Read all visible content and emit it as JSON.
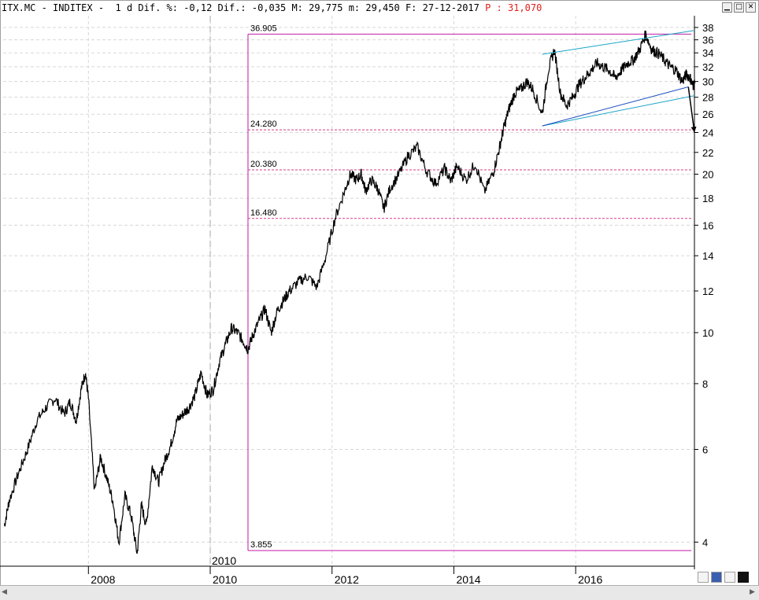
{
  "header": {
    "text": "ITX.MC - INDITEX -  1 d Dif. %: -0,12 Dif.: -0,035 M: 29,775 m: 29,450 F: 27-12-2017 ",
    "last_label": "P : 31,070"
  },
  "colors": {
    "price": "#000000",
    "fib": "#c21ba7",
    "fib_dash": "#d43a8a",
    "channel": "#1aa6c8",
    "channel_inner": "#1a4fbf",
    "grid": "#d8d8d8"
  },
  "chart_data": {
    "type": "line",
    "scale": "log",
    "ylim": [
      3.6,
      40
    ],
    "xlim": [
      2006.6,
      2017.95
    ],
    "y_ticks": [
      4,
      6,
      8,
      10,
      12,
      14,
      16,
      18,
      20,
      22,
      24,
      26,
      28,
      30,
      32,
      34,
      36,
      38
    ],
    "x_ticks": [
      {
        "x": 2008,
        "label": "2008"
      },
      {
        "x": 2010,
        "label": "2010"
      },
      {
        "x": 2012,
        "label": "2012"
      },
      {
        "x": 2014,
        "label": "2014"
      },
      {
        "x": 2016,
        "label": "2016"
      }
    ],
    "vertical_marker": {
      "x": 2010,
      "label": "2010"
    },
    "series": [
      {
        "x": [
          2006.62,
          2006.7,
          2006.85,
          2007.0,
          2007.15,
          2007.3,
          2007.45,
          2007.6,
          2007.7,
          2007.8,
          2007.88,
          2007.95,
          2008.0,
          2008.1,
          2008.2,
          2008.3,
          2008.4,
          2008.5,
          2008.6,
          2008.7,
          2008.8,
          2008.87,
          2008.95,
          2009.05,
          2009.15,
          2009.25,
          2009.35,
          2009.45,
          2009.55,
          2009.65,
          2009.75,
          2009.85,
          2009.95,
          2010.05,
          2010.15,
          2010.25,
          2010.35,
          2010.45,
          2010.55,
          2010.62,
          2010.7,
          2010.8,
          2010.9,
          2011.0,
          2011.1,
          2011.2,
          2011.3,
          2011.45,
          2011.6,
          2011.75,
          2011.9,
          2012.05,
          2012.2,
          2012.3,
          2012.4,
          2012.48,
          2012.55,
          2012.65,
          2012.75,
          2012.85,
          2012.95,
          2013.1,
          2013.25,
          2013.4,
          2013.55,
          2013.7,
          2013.85,
          2013.95,
          2014.05,
          2014.2,
          2014.35,
          2014.5,
          2014.65,
          2014.75,
          2014.82,
          2014.9,
          2015.0,
          2015.1,
          2015.2,
          2015.3,
          2015.45,
          2015.55,
          2015.65,
          2015.75,
          2015.85,
          2015.95,
          2016.05,
          2016.15,
          2016.25,
          2016.35,
          2016.45,
          2016.55,
          2016.65,
          2016.75,
          2016.85,
          2016.95,
          2017.05,
          2017.15,
          2017.25,
          2017.35,
          2017.45,
          2017.55,
          2017.65,
          2017.75,
          2017.82,
          2017.88,
          2017.92,
          2017.96
        ],
        "y": [
          4.3,
          4.8,
          5.4,
          6.0,
          6.8,
          7.2,
          7.5,
          7.0,
          7.4,
          6.8,
          7.8,
          8.4,
          7.5,
          5.0,
          5.8,
          5.3,
          4.8,
          4.0,
          4.9,
          4.5,
          3.8,
          4.7,
          4.3,
          5.6,
          5.2,
          5.7,
          6.1,
          6.8,
          7.0,
          7.2,
          7.6,
          8.4,
          7.6,
          7.8,
          8.8,
          9.5,
          10.2,
          10.0,
          9.6,
          9.3,
          9.9,
          10.5,
          11.1,
          10.0,
          11.0,
          11.5,
          12.0,
          12.5,
          12.8,
          12.2,
          14.0,
          16.5,
          18.5,
          20.0,
          19.5,
          20.0,
          18.6,
          19.5,
          18.8,
          17.2,
          18.8,
          20.0,
          21.7,
          22.5,
          20.3,
          19.2,
          20.5,
          19.4,
          20.7,
          19.5,
          21.0,
          18.5,
          20.2,
          22.5,
          24.5,
          26.5,
          28.5,
          29.0,
          30.0,
          29.0,
          26.0,
          31.5,
          34.5,
          28.5,
          27.0,
          28.0,
          29.5,
          30.5,
          31.5,
          32.5,
          32.0,
          31.5,
          30.5,
          31.5,
          32.5,
          33.0,
          34.5,
          36.9,
          34.5,
          34.0,
          33.0,
          32.0,
          31.5,
          30.0,
          31.0,
          30.5,
          29.5,
          29.775
        ]
      }
    ],
    "fibonacci": [
      {
        "value": 36.905,
        "label": "36.905"
      },
      {
        "value": 24.28,
        "label": "24.280"
      },
      {
        "value": 20.38,
        "label": "20.380"
      },
      {
        "value": 16.48,
        "label": "16.480"
      },
      {
        "value": 3.855,
        "label": "3.855"
      }
    ],
    "fib_x_range": [
      2010.62,
      2017.9
    ],
    "channel_lines": [
      {
        "x": [
          2015.45,
          2017.95
        ],
        "y": [
          33.8,
          37.5
        ]
      },
      {
        "x": [
          2015.45,
          2017.95
        ],
        "y": [
          24.7,
          28.2
        ]
      },
      {
        "x": [
          2015.45,
          2017.85
        ],
        "y": [
          24.7,
          29.3
        ]
      }
    ],
    "arrow": {
      "x": [
        2017.85,
        2017.95
      ],
      "y": [
        29.3,
        24.0
      ]
    }
  }
}
